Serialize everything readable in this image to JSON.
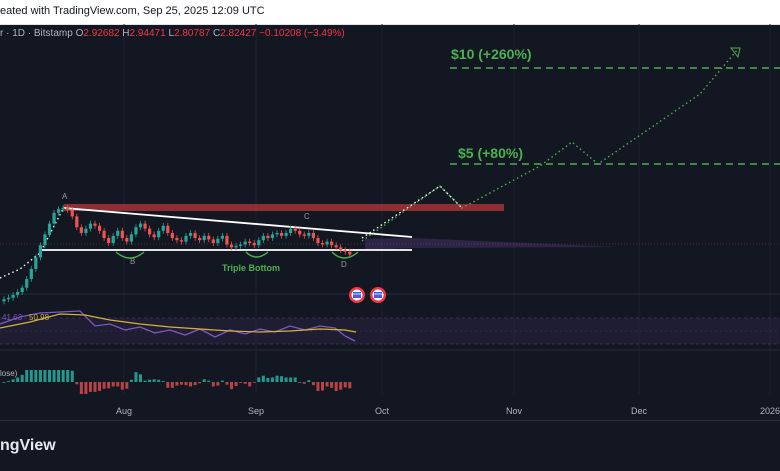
{
  "header": {
    "created_text": "eated with TradingView.com, Sep 25, 2025 12:09 UTC"
  },
  "legend": {
    "symbol": "r · 1D · Bitstamp",
    "open_label": "O",
    "open": "2.92682",
    "high_label": "H",
    "high": "2.94471",
    "low_label": "L",
    "low": "2.80787",
    "close_label": "C",
    "close": "2.82427",
    "change": "−0.10208 (−3.49%)"
  },
  "annotations": {
    "target_10": "$10 (+260%)",
    "target_5": "$5 (+80%)",
    "point_a": "A",
    "point_b": "B",
    "point_c": "C",
    "point_d": "D",
    "pattern": "Triple Bottom"
  },
  "indicators": {
    "rsi_value": "41.63",
    "rsi_ma_value": "50.98",
    "macd_label": "lose)"
  },
  "footer": {
    "brand": "ngView"
  },
  "colors": {
    "background": "#131722",
    "up": "#26a69a",
    "down": "#ef5350",
    "target": "#4caf50",
    "resistance": "#b7353b",
    "rsi": "#7e57c2",
    "rsi_ma": "#d4b23a"
  },
  "chart_data": {
    "type": "candlestick",
    "x_ticks": [
      "Aug",
      "Sep",
      "Oct",
      "Nov",
      "Dec",
      "2026"
    ],
    "series": [
      {
        "values": [
          2.2,
          2.22,
          2.26,
          2.3,
          2.36,
          2.48,
          2.62,
          2.78,
          2.95,
          3.1,
          3.25,
          3.4,
          3.45,
          3.47,
          3.44,
          3.35,
          3.2,
          3.12,
          3.18,
          3.25,
          3.22,
          3.15,
          3.05,
          2.98,
          3.08,
          3.15,
          3.05,
          3.0,
          3.1,
          3.2,
          3.25,
          3.18,
          3.1,
          3.06,
          3.15,
          3.22,
          3.12,
          3.05,
          3.02,
          3.0,
          3.08,
          3.12,
          3.05,
          3.02,
          3.08,
          3.03,
          2.98,
          3.04,
          3.08,
          2.96,
          2.92,
          2.94,
          2.96,
          3.0,
          2.98,
          2.95,
          3.02,
          3.08,
          3.05,
          3.1,
          3.12,
          3.08,
          3.12,
          3.18,
          3.15,
          3.1,
          3.08,
          3.12,
          3.05,
          2.98,
          2.96,
          3.0,
          2.95,
          2.92,
          2.88,
          2.86,
          2.82
        ]
      }
    ],
    "price_targets": [
      10,
      5
    ]
  }
}
